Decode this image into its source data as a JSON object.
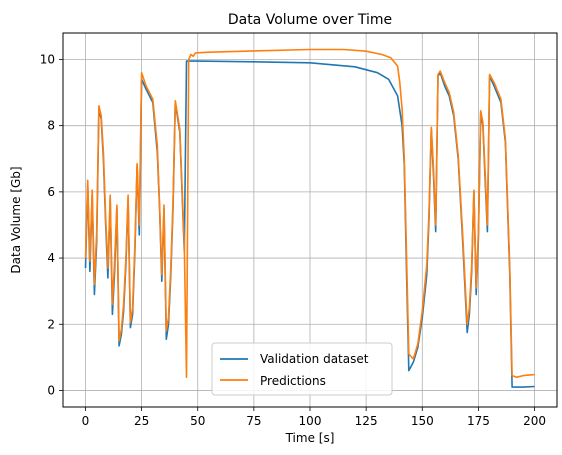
{
  "chart_data": {
    "type": "line",
    "title": "Data Volume over Time",
    "xlabel": "Time [s]",
    "ylabel": "Data Volume [Gb]",
    "xlim": [
      -10,
      210
    ],
    "ylim": [
      -0.5,
      10.8
    ],
    "xticks": [
      0,
      25,
      50,
      75,
      100,
      125,
      150,
      175,
      200
    ],
    "yticks": [
      0,
      2,
      4,
      6,
      8,
      10
    ],
    "grid": true,
    "legend_position": "bottom-center",
    "series": [
      {
        "name": "Validation dataset",
        "color": "#1f77b4",
        "points": [
          [
            0,
            3.7
          ],
          [
            1,
            6.2
          ],
          [
            2,
            3.6
          ],
          [
            3,
            5.9
          ],
          [
            4,
            2.9
          ],
          [
            5,
            4.5
          ],
          [
            6,
            8.5
          ],
          [
            7,
            8.2
          ],
          [
            8,
            7.0
          ],
          [
            9,
            5.0
          ],
          [
            10,
            3.4
          ],
          [
            11,
            5.8
          ],
          [
            12,
            2.3
          ],
          [
            13,
            3.6
          ],
          [
            14,
            5.5
          ],
          [
            15,
            1.35
          ],
          [
            16,
            1.7
          ],
          [
            17,
            2.4
          ],
          [
            18,
            3.8
          ],
          [
            19,
            5.8
          ],
          [
            20,
            1.9
          ],
          [
            21,
            2.3
          ],
          [
            22,
            4.2
          ],
          [
            23,
            6.8
          ],
          [
            24,
            4.7
          ],
          [
            25,
            9.4
          ],
          [
            27,
            9.1
          ],
          [
            30,
            8.7
          ],
          [
            32,
            7.2
          ],
          [
            33,
            5.5
          ],
          [
            34,
            3.3
          ],
          [
            35,
            5.5
          ],
          [
            36,
            1.55
          ],
          [
            37,
            2.0
          ],
          [
            38,
            3.5
          ],
          [
            39,
            5.5
          ],
          [
            40,
            8.7
          ],
          [
            42,
            7.8
          ],
          [
            44,
            4.2
          ],
          [
            45,
            9.95
          ],
          [
            50,
            9.95
          ],
          [
            75,
            9.93
          ],
          [
            100,
            9.9
          ],
          [
            120,
            9.78
          ],
          [
            130,
            9.6
          ],
          [
            135,
            9.4
          ],
          [
            139,
            8.9
          ],
          [
            141,
            8.0
          ],
          [
            142,
            6.8
          ],
          [
            143,
            3.5
          ],
          [
            144,
            0.6
          ],
          [
            146,
            0.85
          ],
          [
            148,
            1.3
          ],
          [
            150,
            2.2
          ],
          [
            152,
            3.5
          ],
          [
            153,
            5.2
          ],
          [
            154,
            7.9
          ],
          [
            155,
            6.5
          ],
          [
            156,
            4.8
          ],
          [
            157,
            9.5
          ],
          [
            158,
            9.6
          ],
          [
            160,
            9.2
          ],
          [
            162,
            8.9
          ],
          [
            164,
            8.3
          ],
          [
            166,
            7.0
          ],
          [
            168,
            4.5
          ],
          [
            170,
            1.75
          ],
          [
            171,
            2.3
          ],
          [
            172,
            3.6
          ],
          [
            173,
            6.0
          ],
          [
            174,
            2.9
          ],
          [
            175,
            4.6
          ],
          [
            176,
            8.4
          ],
          [
            177,
            8.0
          ],
          [
            178,
            6.4
          ],
          [
            179,
            4.8
          ],
          [
            180,
            9.5
          ],
          [
            182,
            9.2
          ],
          [
            185,
            8.7
          ],
          [
            187,
            7.5
          ],
          [
            189,
            3.5
          ],
          [
            190,
            0.1
          ],
          [
            195,
            0.1
          ],
          [
            200,
            0.12
          ]
        ]
      },
      {
        "name": "Predictions",
        "color": "#ff7f0e",
        "points": [
          [
            0,
            4.0
          ],
          [
            1,
            6.35
          ],
          [
            2,
            3.9
          ],
          [
            3,
            6.05
          ],
          [
            4,
            3.2
          ],
          [
            5,
            4.8
          ],
          [
            6,
            8.6
          ],
          [
            7,
            8.3
          ],
          [
            8,
            7.2
          ],
          [
            9,
            5.2
          ],
          [
            10,
            3.7
          ],
          [
            11,
            5.9
          ],
          [
            12,
            2.6
          ],
          [
            13,
            3.9
          ],
          [
            14,
            5.6
          ],
          [
            15,
            1.5
          ],
          [
            16,
            1.85
          ],
          [
            17,
            2.6
          ],
          [
            18,
            4.0
          ],
          [
            19,
            5.9
          ],
          [
            20,
            2.05
          ],
          [
            21,
            2.5
          ],
          [
            22,
            4.4
          ],
          [
            23,
            6.85
          ],
          [
            24,
            5.0
          ],
          [
            25,
            9.6
          ],
          [
            27,
            9.2
          ],
          [
            30,
            8.8
          ],
          [
            32,
            7.4
          ],
          [
            33,
            5.6
          ],
          [
            34,
            3.5
          ],
          [
            35,
            5.6
          ],
          [
            36,
            1.8
          ],
          [
            37,
            2.2
          ],
          [
            38,
            3.7
          ],
          [
            39,
            5.7
          ],
          [
            40,
            8.75
          ],
          [
            42,
            7.9
          ],
          [
            44,
            4.4
          ],
          [
            45,
            0.4
          ],
          [
            46,
            10.0
          ],
          [
            47,
            10.15
          ],
          [
            48,
            10.1
          ],
          [
            49,
            10.2
          ],
          [
            55,
            10.22
          ],
          [
            75,
            10.26
          ],
          [
            100,
            10.3
          ],
          [
            115,
            10.3
          ],
          [
            125,
            10.25
          ],
          [
            132,
            10.15
          ],
          [
            136,
            10.05
          ],
          [
            139,
            9.8
          ],
          [
            140,
            9.3
          ],
          [
            141,
            8.5
          ],
          [
            142,
            7.0
          ],
          [
            143,
            4.0
          ],
          [
            144,
            1.1
          ],
          [
            146,
            0.95
          ],
          [
            148,
            1.4
          ],
          [
            150,
            2.4
          ],
          [
            152,
            3.8
          ],
          [
            153,
            5.4
          ],
          [
            154,
            7.95
          ],
          [
            155,
            6.7
          ],
          [
            156,
            5.0
          ],
          [
            157,
            9.55
          ],
          [
            158,
            9.65
          ],
          [
            160,
            9.3
          ],
          [
            162,
            9.0
          ],
          [
            164,
            8.4
          ],
          [
            166,
            7.1
          ],
          [
            168,
            4.7
          ],
          [
            170,
            2.0
          ],
          [
            171,
            2.5
          ],
          [
            172,
            3.8
          ],
          [
            173,
            6.05
          ],
          [
            174,
            3.1
          ],
          [
            175,
            4.8
          ],
          [
            176,
            8.45
          ],
          [
            177,
            8.1
          ],
          [
            178,
            6.6
          ],
          [
            179,
            5.0
          ],
          [
            180,
            9.55
          ],
          [
            182,
            9.3
          ],
          [
            185,
            8.8
          ],
          [
            187,
            7.6
          ],
          [
            189,
            3.7
          ],
          [
            190,
            0.45
          ],
          [
            192,
            0.4
          ],
          [
            195,
            0.45
          ],
          [
            200,
            0.48
          ]
        ]
      }
    ]
  }
}
